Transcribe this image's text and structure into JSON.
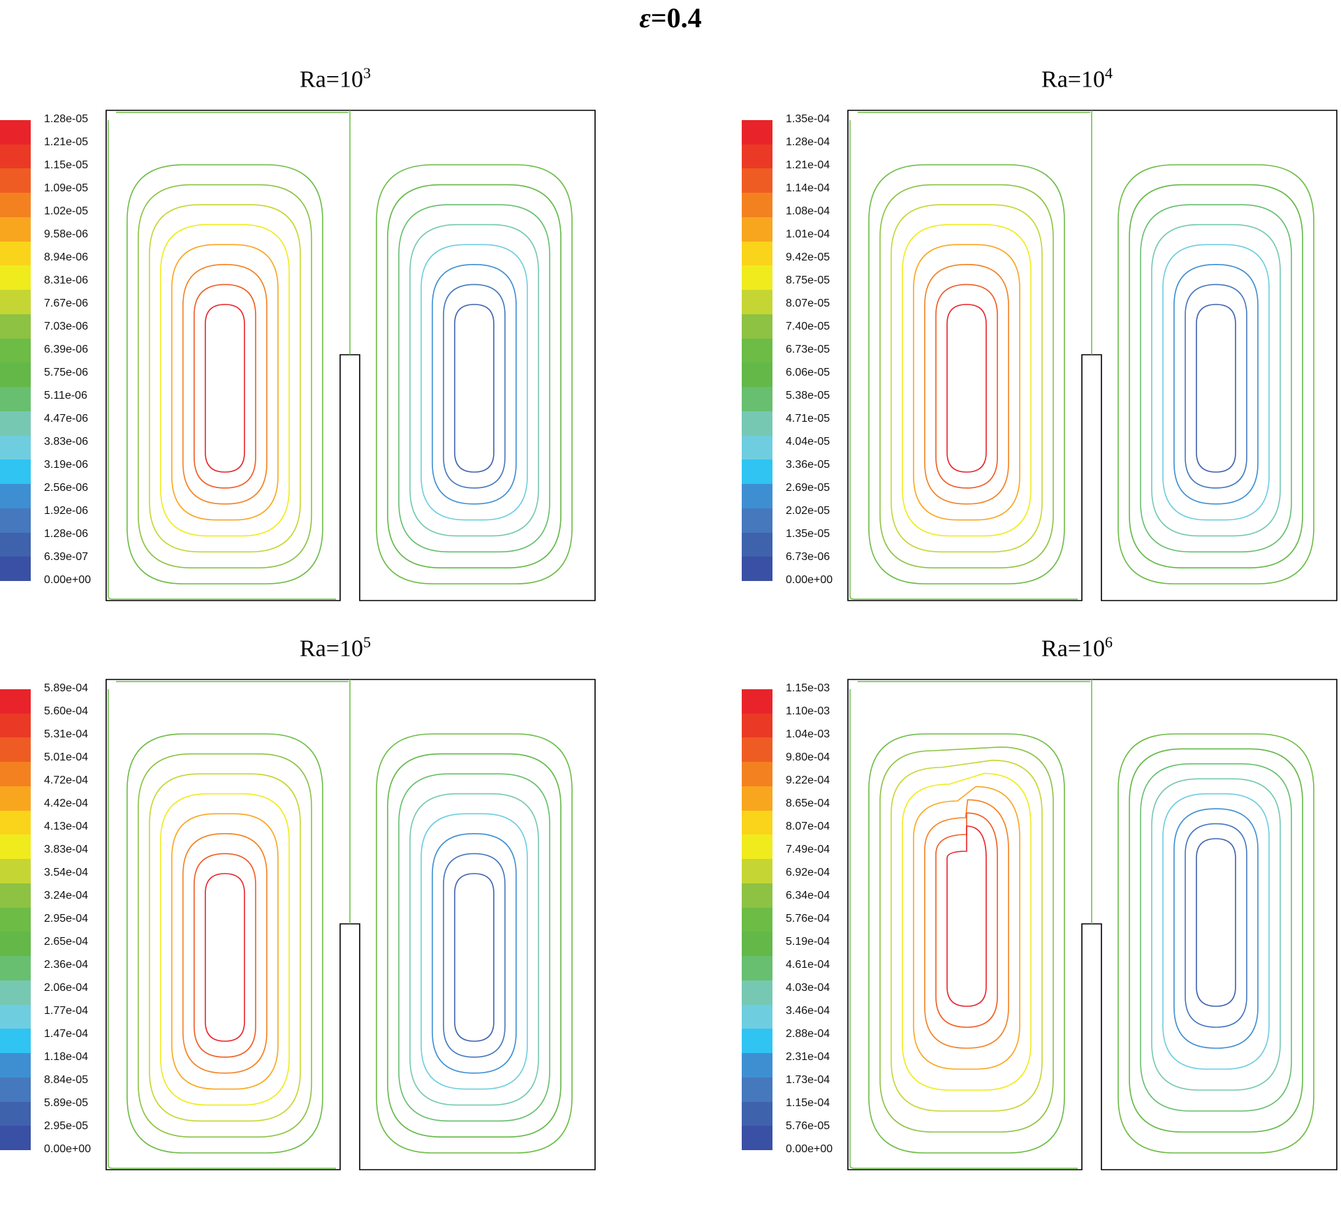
{
  "figure": {
    "title_symbol": "ε",
    "title_value": "=0.4"
  },
  "colorbar_colors": [
    "#3a50a4",
    "#3f62ad",
    "#4578bd",
    "#3e8fd2",
    "#2fc4f2",
    "#6fcde0",
    "#77c8b2",
    "#67bf6f",
    "#63b848",
    "#6cbc45",
    "#8dc243",
    "#c5d634",
    "#f0eb1d",
    "#f9d41a",
    "#f9a61f",
    "#f48120",
    "#ef5c23",
    "#ea3a25",
    "#e8242a"
  ],
  "panels": [
    {
      "title_base": "Ra=10",
      "title_exp": "3",
      "colorbar_labels": [
        "1.28e-05",
        "1.21e-05",
        "1.15e-05",
        "1.09e-05",
        "1.02e-05",
        "9.58e-06",
        "8.94e-06",
        "8.31e-06",
        "7.67e-06",
        "7.03e-06",
        "6.39e-06",
        "5.75e-06",
        "5.11e-06",
        "4.47e-06",
        "3.83e-06",
        "3.19e-06",
        "2.56e-06",
        "1.92e-06",
        "1.28e-06",
        "6.39e-07",
        "0.00e+00"
      ]
    },
    {
      "title_base": "Ra=10",
      "title_exp": "4",
      "colorbar_labels": [
        "1.35e-04",
        "1.28e-04",
        "1.21e-04",
        "1.14e-04",
        "1.08e-04",
        "1.01e-04",
        "9.42e-05",
        "8.75e-05",
        "8.07e-05",
        "7.40e-05",
        "6.73e-05",
        "6.06e-05",
        "5.38e-05",
        "4.71e-05",
        "4.04e-05",
        "3.36e-05",
        "2.69e-05",
        "2.02e-05",
        "1.35e-05",
        "6.73e-06",
        "0.00e+00"
      ]
    },
    {
      "title_base": "Ra=10",
      "title_exp": "5",
      "colorbar_labels": [
        "5.89e-04",
        "5.60e-04",
        "5.31e-04",
        "5.01e-04",
        "4.72e-04",
        "4.42e-04",
        "4.13e-04",
        "3.83e-04",
        "3.54e-04",
        "3.24e-04",
        "2.95e-04",
        "2.65e-04",
        "2.36e-04",
        "2.06e-04",
        "1.77e-04",
        "1.47e-04",
        "1.18e-04",
        "8.84e-05",
        "5.89e-05",
        "2.95e-05",
        "0.00e+00"
      ]
    },
    {
      "title_base": "Ra=10",
      "title_exp": "6",
      "colorbar_labels": [
        "1.15e-03",
        "1.10e-03",
        "1.04e-03",
        "9.80e-04",
        "9.22e-04",
        "8.65e-04",
        "8.07e-04",
        "7.49e-04",
        "6.92e-04",
        "6.34e-04",
        "5.76e-04",
        "5.19e-04",
        "4.61e-04",
        "4.03e-04",
        "3.46e-04",
        "2.88e-04",
        "2.31e-04",
        "1.73e-04",
        "1.15e-04",
        "5.76e-05",
        "0.00e+00"
      ]
    }
  ],
  "contour_colors": [
    "#6cbc45",
    "#8dc243",
    "#c5d634",
    "#f0eb1d",
    "#f9a61f",
    "#f48120",
    "#ef5c23",
    "#e8242a"
  ],
  "contour_colors_right": [
    "#6cbc45",
    "#63b848",
    "#67bf6f",
    "#77c8b2",
    "#6fcde0",
    "#3e8fd2",
    "#4578bd",
    "#3f62ad"
  ]
}
